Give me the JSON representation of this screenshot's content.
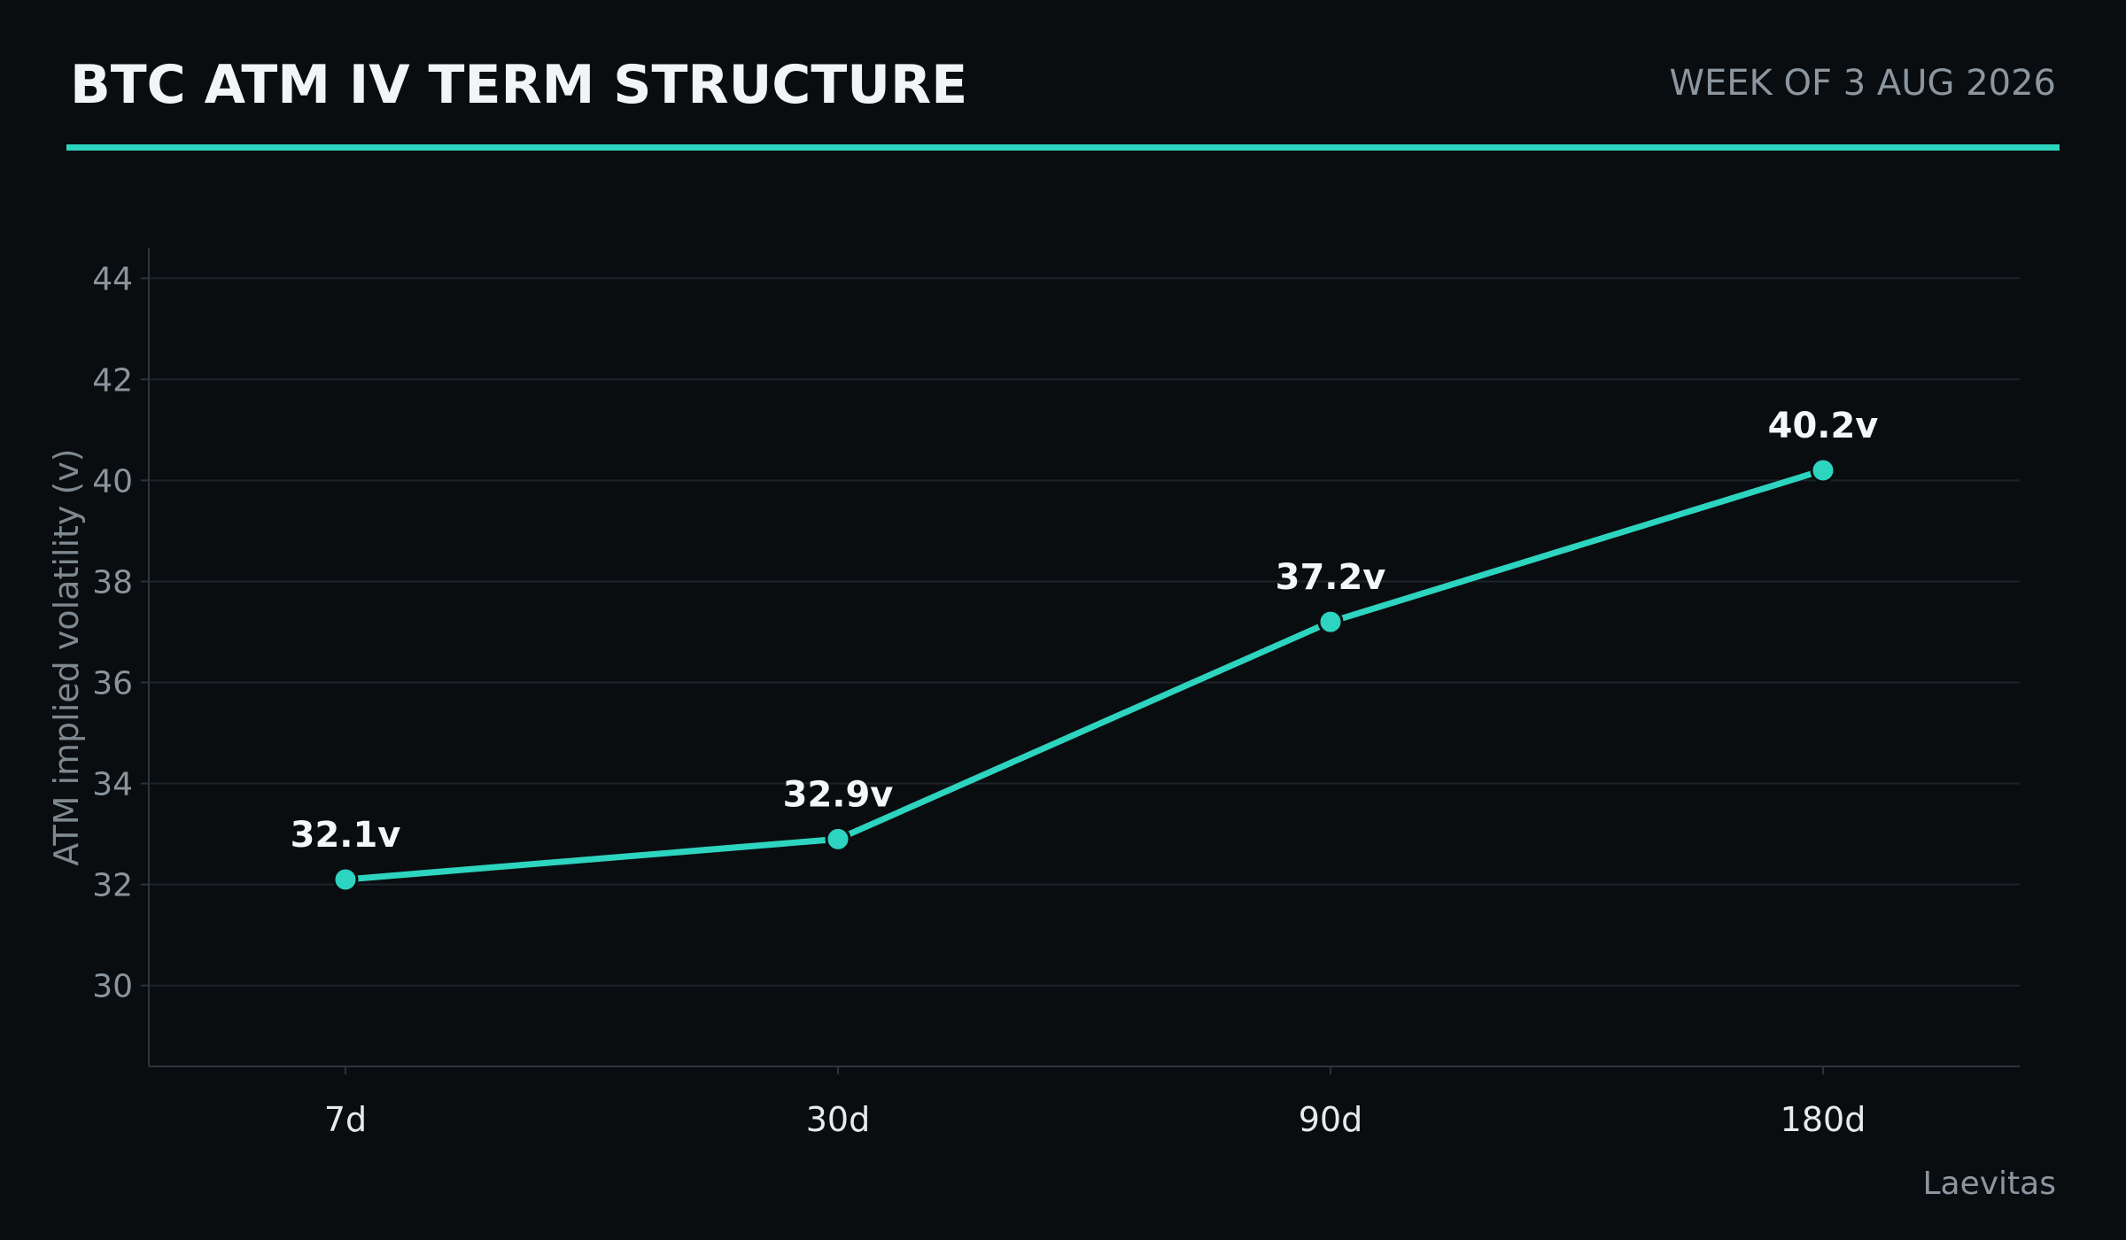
{
  "header": {
    "title": "BTC ATM IV TERM STRUCTURE",
    "subtitle": "WEEK OF 3 AUG 2026"
  },
  "footer": {
    "source": "Laevitas"
  },
  "colors": {
    "background": "#0a0d10",
    "accent": "#2dd4bf",
    "grid": "#1c232a",
    "axis": "#2c343b",
    "marker_edge": "#0a0d10"
  },
  "chart_data": {
    "type": "line",
    "categories": [
      "7d",
      "30d",
      "90d",
      "180d"
    ],
    "values": [
      32.1,
      32.9,
      37.2,
      40.2
    ],
    "data_labels": [
      "32.1v",
      "32.9v",
      "37.2v",
      "40.2v"
    ],
    "ylabel": "ATM implied volatility (v)",
    "xlabel": "",
    "ylim": [
      28.4,
      44.6
    ],
    "yticks": [
      30,
      32,
      34,
      36,
      38,
      40,
      42,
      44
    ],
    "grid": true,
    "legend": "none"
  }
}
